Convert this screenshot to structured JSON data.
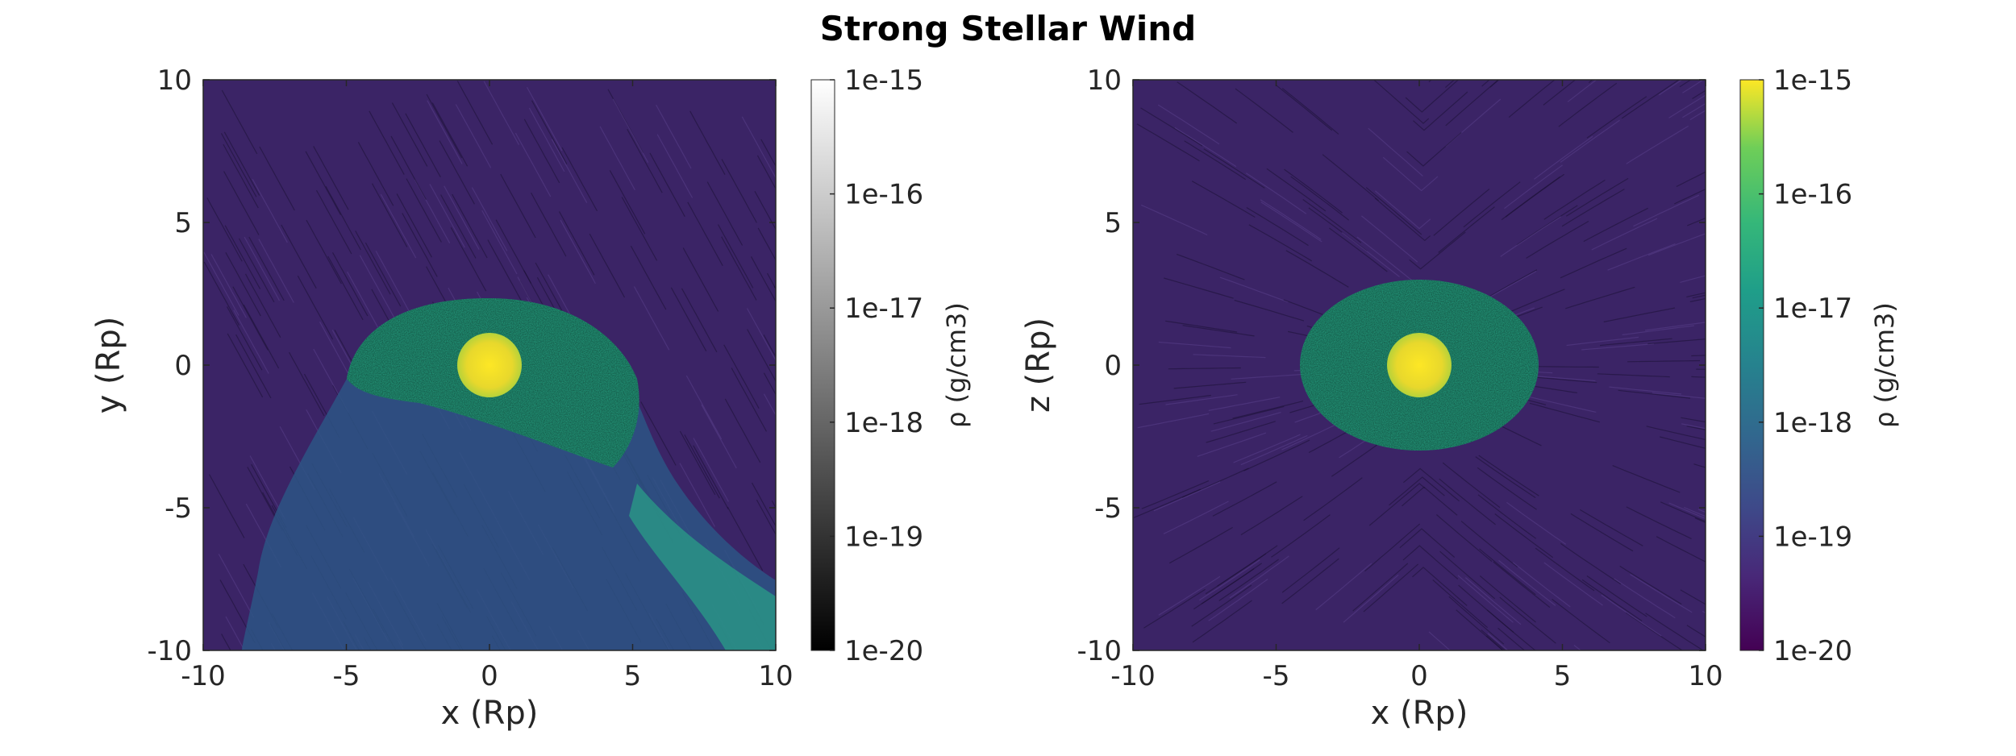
{
  "chart_data": {
    "type": "heatmap",
    "title": "Strong Stellar Wind",
    "panels": [
      {
        "id": "xy-slice",
        "xlabel": "x (Rp)",
        "ylabel": "y (Rp)",
        "xlim": [
          -10,
          10
        ],
        "ylim": [
          -10,
          10
        ],
        "x_ticks": [
          "-10",
          "-5",
          "0",
          "5",
          "10"
        ],
        "y_ticks": [
          "10",
          "5",
          "0",
          "-5",
          "-10"
        ],
        "colormap": "gray",
        "colorbar_label": "ρ (g/cm3)",
        "colorbar_ticks": [
          "1e-15",
          "1e-16",
          "1e-17",
          "1e-18",
          "1e-19",
          "1e-20"
        ],
        "overlay": "streamlines",
        "features": {
          "planet_center": [
            0,
            0
          ],
          "core_radius": 1.1,
          "envelope_radius": 4.5,
          "tail_direction": "down-right"
        }
      },
      {
        "id": "xz-slice",
        "xlabel": "x (Rp)",
        "ylabel": "z (Rp)",
        "xlim": [
          -10,
          10
        ],
        "ylim": [
          -10,
          10
        ],
        "x_ticks": [
          "-10",
          "-5",
          "0",
          "5",
          "10"
        ],
        "y_ticks": [
          "10",
          "5",
          "0",
          "-5",
          "-10"
        ],
        "colormap": "viridis",
        "colorbar_label": "ρ (g/cm3)",
        "colorbar_ticks": [
          "1e-15",
          "1e-16",
          "1e-17",
          "1e-18",
          "1e-19",
          "1e-20"
        ],
        "overlay": "streamlines",
        "features": {
          "planet_center": [
            0,
            0
          ],
          "core_radius": 1.1,
          "envelope_half_width_x": 4.1,
          "envelope_half_height_z": 3.0
        }
      }
    ]
  },
  "colors": {
    "background_wind": "#3b2466",
    "core": "#f3e13a",
    "envelope": "#2fa985",
    "tail": "#2f5a86"
  }
}
